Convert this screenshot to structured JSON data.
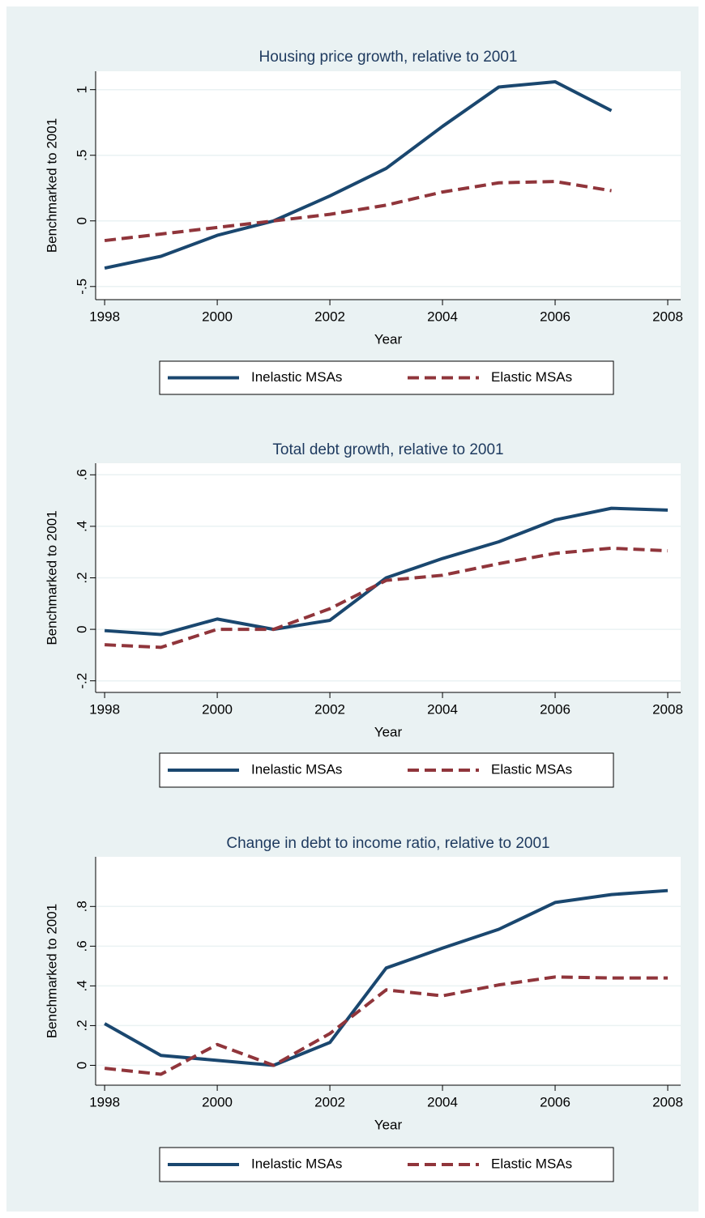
{
  "chart_data": [
    {
      "type": "line",
      "title": "Housing price growth, relative to 2001",
      "x_label": "Year",
      "y_label": "Benchmarked to 2001",
      "x": [
        1998,
        1999,
        2000,
        2001,
        2002,
        2003,
        2004,
        2005,
        2006,
        2007,
        2008
      ],
      "xlim": [
        1997.84,
        2008.23
      ],
      "xticks": [
        1998,
        2000,
        2002,
        2004,
        2006,
        2008
      ],
      "ylim": [
        -0.6,
        1.14
      ],
      "yticks": [
        {
          "value": -0.5,
          "label": "-.5"
        },
        0,
        {
          "value": 0.5,
          "label": ".5"
        },
        1
      ],
      "grid": true,
      "legend": "bottom",
      "series": [
        {
          "name": "Inelastic MSAs",
          "color": "#1a476f",
          "line_style": "solid",
          "values": [
            -0.36,
            -0.27,
            -0.11,
            0,
            0.19,
            0.4,
            0.72,
            1.02,
            1.06,
            0.84,
            null
          ]
        },
        {
          "name": "Elastic MSAs",
          "color": "#90353b",
          "line_style": "dashed",
          "values": [
            -0.15,
            -0.1,
            -0.05,
            0,
            0.05,
            0.12,
            0.22,
            0.29,
            0.3,
            0.23,
            null
          ]
        }
      ]
    },
    {
      "type": "line",
      "title": "Total debt growth, relative to 2001",
      "x_label": "Year",
      "y_label": "Benchmarked to 2001",
      "x": [
        1998,
        1999,
        2000,
        2001,
        2002,
        2003,
        2004,
        2005,
        2006,
        2007,
        2008
      ],
      "xlim": [
        1997.84,
        2008.23
      ],
      "xticks": [
        1998,
        2000,
        2002,
        2004,
        2006,
        2008
      ],
      "ylim": [
        -0.245,
        0.645
      ],
      "yticks": [
        {
          "value": -0.2,
          "label": "-.2"
        },
        0,
        {
          "value": 0.2,
          "label": ".2"
        },
        {
          "value": 0.4,
          "label": ".4"
        },
        {
          "value": 0.6,
          "label": ".6"
        }
      ],
      "grid": true,
      "legend": "bottom",
      "series": [
        {
          "name": "Inelastic MSAs",
          "color": "#1a476f",
          "line_style": "solid",
          "values": [
            -0.005,
            -0.02,
            0.04,
            0,
            0.035,
            0.2,
            0.275,
            0.34,
            0.425,
            0.47,
            0.463
          ]
        },
        {
          "name": "Elastic MSAs",
          "color": "#90353b",
          "line_style": "dashed",
          "values": [
            -0.06,
            -0.07,
            0,
            0,
            0.08,
            0.19,
            0.21,
            0.255,
            0.295,
            0.315,
            0.305
          ]
        }
      ]
    },
    {
      "type": "line",
      "title": "Change in debt to income ratio, relative to 2001",
      "x_label": "Year",
      "y_label": "Benchmarked to 2001",
      "x": [
        1998,
        1999,
        2000,
        2001,
        2002,
        2003,
        2004,
        2005,
        2006,
        2007,
        2008
      ],
      "xlim": [
        1997.84,
        2008.23
      ],
      "xticks": [
        1998,
        2000,
        2002,
        2004,
        2006,
        2008
      ],
      "ylim": [
        -0.1,
        1.05
      ],
      "yticks": [
        0,
        {
          "value": 0.2,
          "label": ".2"
        },
        {
          "value": 0.4,
          "label": ".4"
        },
        {
          "value": 0.6,
          "label": ".6"
        },
        {
          "value": 0.8,
          "label": ".8"
        }
      ],
      "grid": true,
      "legend": "bottom",
      "series": [
        {
          "name": "Inelastic MSAs",
          "color": "#1a476f",
          "line_style": "solid",
          "values": [
            0.21,
            0.05,
            0.025,
            0,
            0.115,
            0.49,
            0.59,
            0.685,
            0.82,
            0.86,
            0.88
          ]
        },
        {
          "name": "Elastic MSAs",
          "color": "#90353b",
          "line_style": "dashed",
          "values": [
            -0.015,
            -0.045,
            0.105,
            0,
            0.16,
            0.38,
            0.35,
            0.405,
            0.445,
            0.44,
            0.44
          ]
        }
      ]
    }
  ]
}
